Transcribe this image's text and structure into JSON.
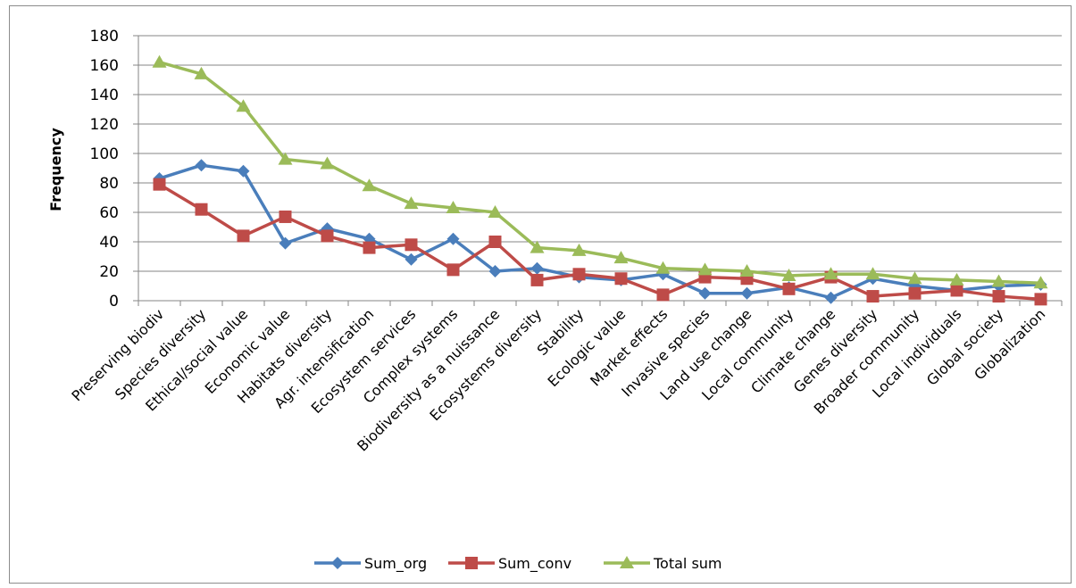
{
  "chart_data": {
    "type": "line",
    "title": "",
    "xlabel": "",
    "ylabel": "Frequency",
    "ylim": [
      0,
      180
    ],
    "yticks": [
      0,
      20,
      40,
      60,
      80,
      100,
      120,
      140,
      160,
      180
    ],
    "grid": true,
    "legend_position": "bottom",
    "categories": [
      "Preserving biodiv",
      "Species diversity",
      "Ethical/social value",
      "Economic value",
      "Habitats diversity",
      "Agr. intensification",
      "Ecosystem services",
      "Complex systems",
      "Biodiversity as a nuissance",
      "Ecosystems diversity",
      "Stability",
      "Ecologic value",
      "Market effects",
      "Invasive species",
      "Land use change",
      "Local community",
      "Climate change",
      "Genes diversity",
      "Broader community",
      "Local individuals",
      "Global society",
      "Globalization"
    ],
    "series": [
      {
        "name": "Sum_org",
        "color": "#4a7ebb",
        "marker": "diamond",
        "values": [
          83,
          92,
          88,
          39,
          49,
          42,
          28,
          42,
          20,
          22,
          16,
          14,
          18,
          5,
          5,
          9,
          2,
          15,
          10,
          7,
          10,
          11
        ]
      },
      {
        "name": "Sum_conv",
        "color": "#be4b48",
        "marker": "square",
        "values": [
          79,
          62,
          44,
          57,
          44,
          36,
          38,
          21,
          40,
          14,
          18,
          15,
          4,
          16,
          15,
          8,
          16,
          3,
          5,
          7,
          3,
          1
        ]
      },
      {
        "name": "Total sum",
        "color": "#9bbb59",
        "marker": "triangle",
        "values": [
          162,
          154,
          132,
          96,
          93,
          78,
          66,
          63,
          60,
          36,
          34,
          29,
          22,
          21,
          20,
          17,
          18,
          18,
          15,
          14,
          13,
          12
        ]
      }
    ]
  }
}
